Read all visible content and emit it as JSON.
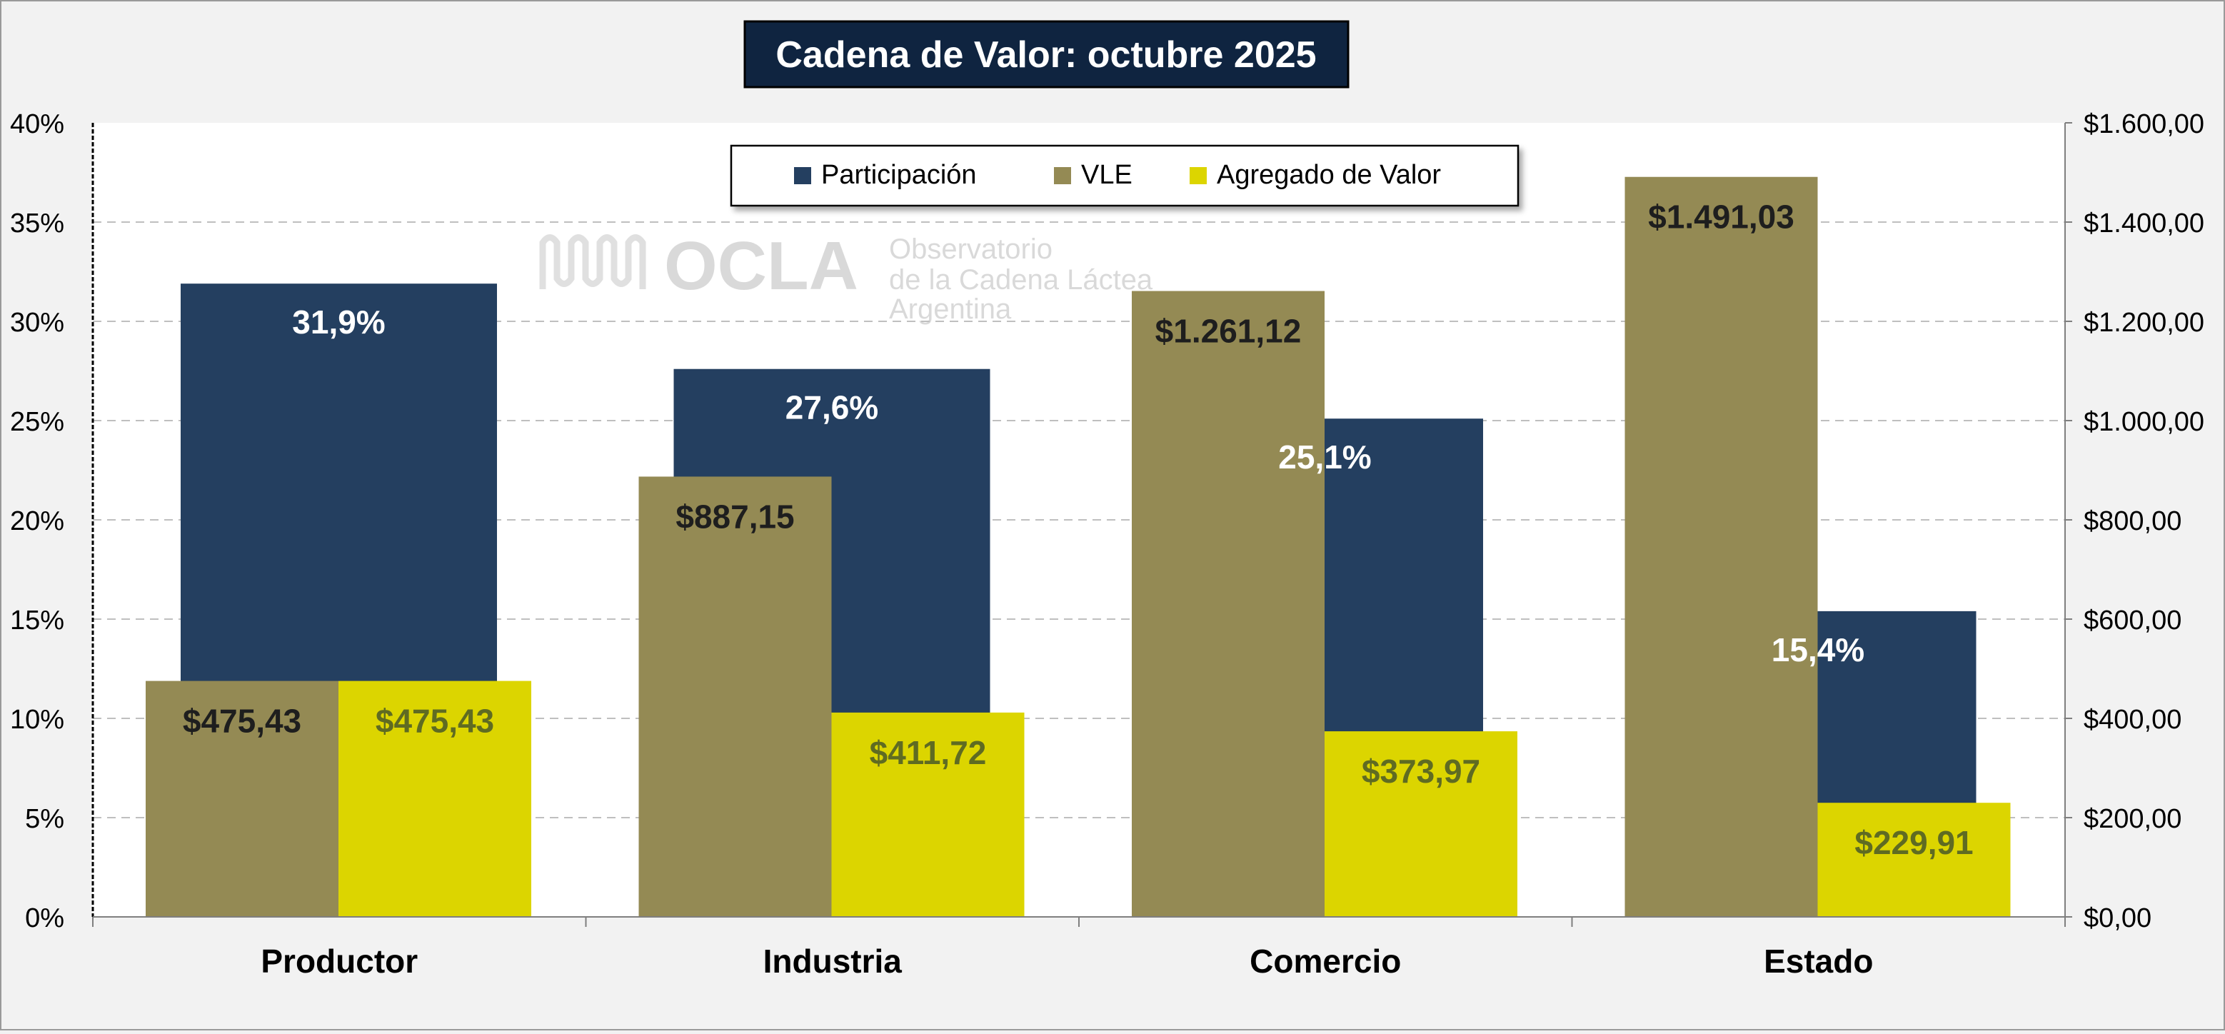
{
  "chart_data": {
    "type": "bar",
    "title": "Cadena de Valor: octubre 2025",
    "categories": [
      "Productor",
      "Industria",
      "Comercio",
      "Estado"
    ],
    "series": [
      {
        "name": "Participación",
        "axis": "left",
        "color": "#243f60",
        "values": [
          31.9,
          27.6,
          25.1,
          15.4
        ],
        "labels": [
          "31,9%",
          "27,6%",
          "25,1%",
          "15,4%"
        ],
        "label_color": "#ffffff"
      },
      {
        "name": "VLE",
        "axis": "right",
        "color": "#948a54",
        "values": [
          475.43,
          887.15,
          1261.12,
          1491.03
        ],
        "labels": [
          "$475,43",
          "$887,15",
          "$1.261,12",
          "$1.491,03"
        ],
        "label_color": "#1e1e1e"
      },
      {
        "name": "Agregado de Valor",
        "axis": "right",
        "color": "#dcd500",
        "values": [
          475.43,
          411.72,
          373.97,
          229.91
        ],
        "labels": [
          "$475,43",
          "$411,72",
          "$373,97",
          "$229,91"
        ],
        "label_color": "#5f6b22"
      }
    ],
    "y_left": {
      "min": 0,
      "max": 40,
      "ticks": [
        "0%",
        "5%",
        "10%",
        "15%",
        "20%",
        "25%",
        "30%",
        "35%",
        "40%"
      ]
    },
    "y_right": {
      "min": 0,
      "max": 1600,
      "ticks": [
        "$0,00",
        "$200,00",
        "$400,00",
        "$600,00",
        "$800,00",
        "$1.000,00",
        "$1.200,00",
        "$1.400,00",
        "$1.600,00"
      ]
    },
    "grid": "dashed horizontal",
    "legend": "top-center"
  },
  "watermark": {
    "logo_text": "OCLA",
    "lines": [
      "Observatorio",
      "de la Cadena Láctea",
      "Argentina"
    ]
  },
  "colors": {
    "title_bg": "#0f2440",
    "title_text": "#ffffff",
    "background": "#f2f2f2",
    "plot_bg": "#ffffff"
  }
}
